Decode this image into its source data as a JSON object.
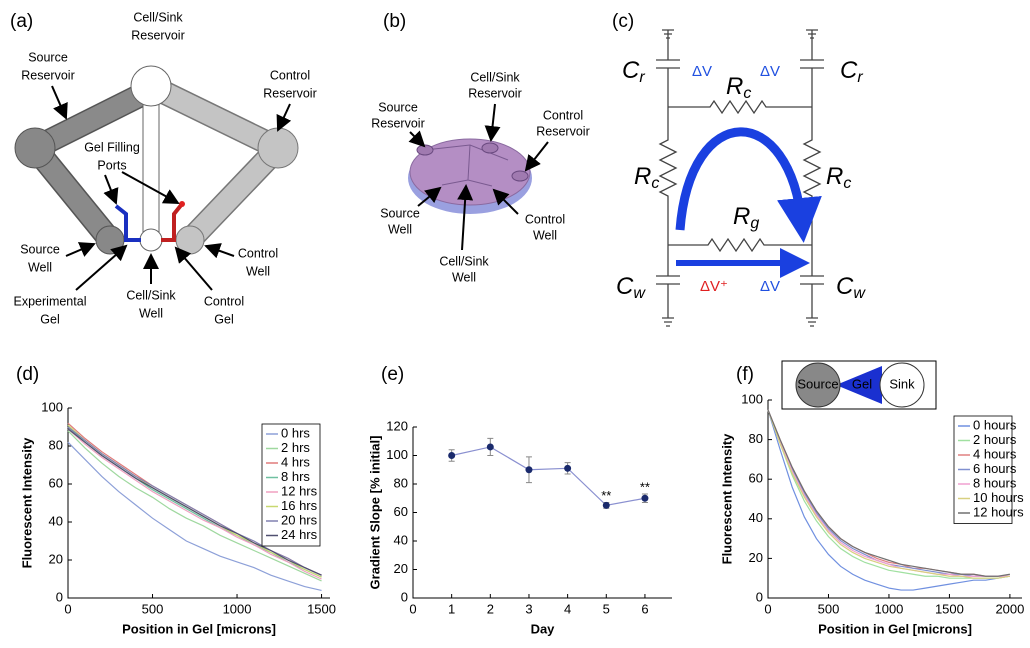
{
  "panels": {
    "a": {
      "tag": "(a)",
      "labels": {
        "cell_sink_reservoir": [
          "Cell/Sink",
          "Reservoir"
        ],
        "source_reservoir": [
          "Source",
          "Reservoir"
        ],
        "control_reservoir": [
          "Control",
          "Reservoir"
        ],
        "gel_filling_ports": [
          "Gel Filling",
          "Ports"
        ],
        "source_well": [
          "Source",
          "Well"
        ],
        "experimental_gel": [
          "Experimental",
          "Gel"
        ],
        "cell_sink_well": [
          "Cell/Sink",
          "Well"
        ],
        "control_gel": [
          "Control",
          "Gel"
        ],
        "control_well": [
          "Control",
          "Well"
        ]
      }
    },
    "b": {
      "tag": "(b)",
      "labels": {
        "source_reservoir": [
          "Source",
          "Reservoir"
        ],
        "cell_sink_reservoir": [
          "Cell/Sink",
          "Reservoir"
        ],
        "control_reservoir": [
          "Control",
          "Reservoir"
        ],
        "source_well": [
          "Source",
          "Well"
        ],
        "cell_sink_well": [
          "Cell/Sink",
          "Well"
        ],
        "control_well": [
          "Control",
          "Well"
        ]
      }
    },
    "c": {
      "tag": "(c)",
      "cr": {
        "main": "C",
        "sub": "r"
      },
      "rc": {
        "main": "R",
        "sub": "c"
      },
      "rg": {
        "main": "R",
        "sub": "g"
      },
      "cw": {
        "main": "C",
        "sub": "w"
      },
      "dv": "ΔV",
      "dv_plus": "ΔV⁺"
    }
  },
  "chart_data": [
    {
      "type": "line",
      "tag": "(d)",
      "xlabel": "Position in Gel [microns]",
      "ylabel": "Fluorescent Intensity",
      "x": [
        0,
        100,
        200,
        300,
        400,
        500,
        600,
        700,
        800,
        900,
        1000,
        1100,
        1200,
        1300,
        1400,
        1500
      ],
      "xlim": [
        0,
        1550
      ],
      "xticks": [
        0,
        500,
        1000,
        1500
      ],
      "ylim": [
        0,
        100
      ],
      "yticks": [
        0,
        20,
        40,
        60,
        80,
        100
      ],
      "legend": "upper right",
      "series": [
        {
          "name": "0 hrs",
          "color": "#8da0d8",
          "values": [
            82,
            73,
            64,
            56,
            49,
            42,
            36,
            30,
            26,
            22,
            19,
            16,
            12,
            9,
            6,
            4
          ]
        },
        {
          "name": "2 hrs",
          "color": "#9fd89f",
          "values": [
            88,
            79,
            71,
            64,
            58,
            53,
            47,
            42,
            38,
            33,
            29,
            25,
            21,
            17,
            13,
            9
          ]
        },
        {
          "name": "4 hrs",
          "color": "#e07a7a",
          "values": [
            92,
            84,
            77,
            71,
            65,
            59,
            54,
            49,
            44,
            39,
            34,
            29,
            25,
            21,
            16,
            12
          ]
        },
        {
          "name": "8 hrs",
          "color": "#6fc0a0",
          "values": [
            90,
            82,
            75,
            69,
            63,
            57,
            52,
            47,
            42,
            37,
            33,
            28,
            24,
            19,
            15,
            11
          ]
        },
        {
          "name": "12 hrs",
          "color": "#f0a0c0",
          "values": [
            89,
            81,
            74,
            68,
            62,
            56,
            51,
            46,
            41,
            37,
            32,
            28,
            23,
            19,
            14,
            10
          ]
        },
        {
          "name": "16 hrs",
          "color": "#c8d870",
          "values": [
            91,
            83,
            76,
            70,
            64,
            58,
            53,
            48,
            43,
            38,
            33,
            29,
            24,
            20,
            15,
            11
          ]
        },
        {
          "name": "20 hrs",
          "color": "#8080b0",
          "values": [
            90,
            83,
            76,
            70,
            64,
            59,
            54,
            49,
            44,
            39,
            34,
            30,
            25,
            21,
            16,
            12
          ]
        },
        {
          "name": "24 hrs",
          "color": "#505070",
          "values": [
            89,
            82,
            75,
            69,
            63,
            58,
            53,
            48,
            43,
            38,
            34,
            29,
            25,
            20,
            16,
            12
          ]
        }
      ]
    },
    {
      "type": "line",
      "tag": "(e)",
      "xlabel": "Day",
      "ylabel": "Gradient Slope [% initial]",
      "x": [
        1,
        2,
        3,
        4,
        5,
        6
      ],
      "xlim": [
        0,
        6.7
      ],
      "xticks": [
        0,
        1,
        2,
        3,
        4,
        5,
        6
      ],
      "ylim": [
        0,
        120
      ],
      "yticks": [
        0,
        20,
        40,
        60,
        80,
        100,
        120
      ],
      "series": [
        {
          "color": "#8a90d0",
          "marker_color": "#1a2a6c",
          "values": [
            100,
            106,
            90,
            91,
            65,
            70
          ],
          "errors": [
            4,
            6,
            9,
            4,
            2,
            3
          ],
          "sig_labels": [
            null,
            null,
            null,
            null,
            "**",
            "**"
          ]
        }
      ]
    },
    {
      "type": "line",
      "tag": "(f)",
      "xlabel": "Position in Gel [microns]",
      "ylabel": "Fluorescent Intensity",
      "x": [
        0,
        100,
        200,
        300,
        400,
        500,
        600,
        700,
        800,
        900,
        1000,
        1100,
        1200,
        1300,
        1400,
        1500,
        1600,
        1700,
        1800,
        1900,
        2000
      ],
      "xlim": [
        0,
        2100
      ],
      "xticks": [
        0,
        500,
        1000,
        1500,
        2000
      ],
      "ylim": [
        0,
        100
      ],
      "yticks": [
        0,
        20,
        40,
        60,
        80,
        100
      ],
      "legend": "upper right",
      "inset": {
        "source": "Source",
        "gel": "Gel",
        "sink": "Sink"
      },
      "series": [
        {
          "name": "0 hours",
          "color": "#7090e0",
          "values": [
            95,
            75,
            56,
            41,
            30,
            22,
            16,
            12,
            9,
            7,
            5,
            4,
            4,
            5,
            6,
            7,
            8,
            9,
            9,
            10,
            11
          ]
        },
        {
          "name": "2 hours",
          "color": "#a0e0a0",
          "values": [
            95,
            78,
            62,
            49,
            39,
            31,
            25,
            21,
            18,
            16,
            14,
            13,
            12,
            11,
            11,
            10,
            10,
            10,
            10,
            10,
            11
          ]
        },
        {
          "name": "4 hours",
          "color": "#e08080",
          "values": [
            95,
            80,
            66,
            54,
            44,
            36,
            30,
            26,
            23,
            20,
            18,
            17,
            15,
            15,
            14,
            13,
            12,
            12,
            11,
            11,
            11
          ]
        },
        {
          "name": "6 hours",
          "color": "#8090d0",
          "values": [
            95,
            79,
            65,
            53,
            43,
            35,
            29,
            25,
            22,
            19,
            17,
            16,
            15,
            14,
            13,
            12,
            12,
            11,
            11,
            11,
            11
          ]
        },
        {
          "name": "8 hours",
          "color": "#f0a0d0",
          "values": [
            95,
            79,
            64,
            52,
            42,
            34,
            28,
            24,
            21,
            19,
            17,
            15,
            14,
            13,
            12,
            12,
            11,
            11,
            11,
            11,
            11
          ]
        },
        {
          "name": "10 hours",
          "color": "#d8d080",
          "values": [
            95,
            78,
            63,
            51,
            41,
            33,
            27,
            23,
            20,
            18,
            16,
            15,
            14,
            13,
            12,
            11,
            11,
            10,
            10,
            10,
            11
          ]
        },
        {
          "name": "12 hours",
          "color": "#707070",
          "values": [
            95,
            80,
            66,
            54,
            44,
            36,
            30,
            26,
            23,
            21,
            19,
            17,
            16,
            15,
            14,
            13,
            12,
            12,
            11,
            11,
            12
          ]
        }
      ]
    }
  ]
}
